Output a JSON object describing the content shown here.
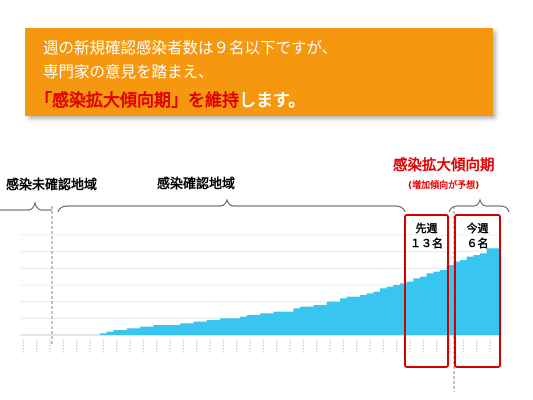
{
  "banner": {
    "line1": "週の新規確認感染者数は９名以下ですが、",
    "line2": "専門家の意見を踏まえ、",
    "line3_highlight": "「感染拡大傾向期」を維持",
    "line3_rest": "します。"
  },
  "labels": {
    "unconfirmed_area": "感染未確認地域",
    "confirmed_area": "感染確認地域",
    "expansion_period": "感染拡大傾向期",
    "expansion_sub": "(増加傾向が予想)",
    "last_week_title": "先週",
    "last_week_value": "１３名",
    "this_week_title": "今週",
    "this_week_value": "６名"
  },
  "colors": {
    "banner": "#f5970f",
    "bar": "#38c6f0",
    "highlight": "#e00000"
  },
  "chart_data": {
    "type": "bar",
    "series": [
      {
        "values": [
          0,
          0,
          0,
          0,
          0,
          0,
          0,
          0,
          0,
          0,
          0,
          0,
          1,
          2,
          3,
          3,
          4,
          4,
          5,
          5,
          6,
          6,
          6,
          6,
          7,
          7,
          8,
          8,
          9,
          9,
          10,
          10,
          10,
          11,
          12,
          12,
          13,
          13,
          14,
          14,
          14,
          16,
          17,
          17,
          18,
          18,
          20,
          20,
          22,
          23,
          23,
          24,
          25,
          26,
          28,
          29,
          30,
          31,
          32,
          34,
          35,
          37,
          38,
          39,
          42,
          44,
          45,
          47,
          48,
          49,
          52,
          52
        ]
      }
    ]
  }
}
